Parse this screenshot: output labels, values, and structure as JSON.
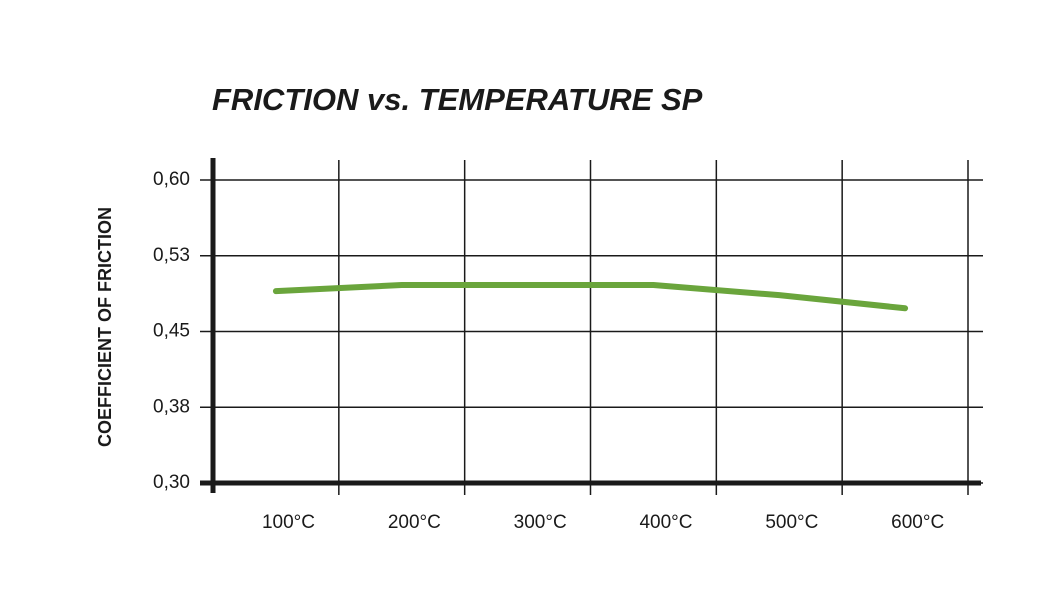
{
  "chart_data": {
    "type": "line",
    "title": "FRICTION vs. TEMPERATURE SP",
    "y_label": "COEFFICIENT OF FRICTION",
    "categories": [
      "100°C",
      "200°C",
      "300°C",
      "400°C",
      "500°C",
      "600°C"
    ],
    "series": [
      {
        "color": "#6aa53c",
        "values": [
          0.49,
          0.496,
          0.496,
          0.496,
          0.486,
          0.473
        ]
      }
    ],
    "ylim": [
      0.3,
      0.6
    ],
    "yticks": [
      {
        "value": 0.3,
        "label": "0,30"
      },
      {
        "value": 0.375,
        "label": "0,38"
      },
      {
        "value": 0.45,
        "label": "0,45"
      },
      {
        "value": 0.525,
        "label": "0,53"
      },
      {
        "value": 0.6,
        "label": "0,60"
      }
    ],
    "grid": true
  }
}
